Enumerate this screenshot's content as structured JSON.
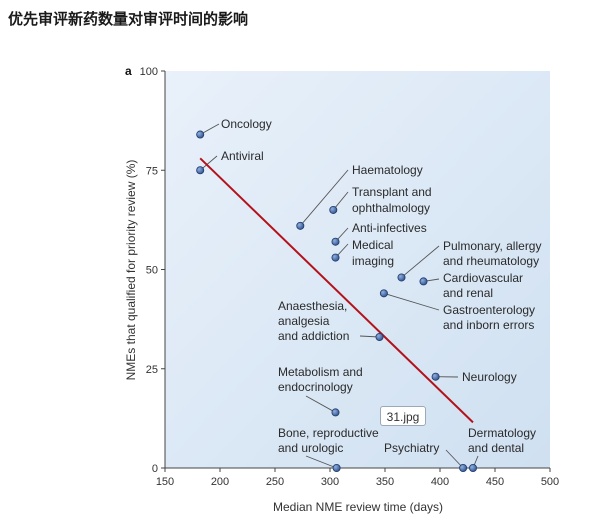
{
  "page": {
    "title": "优先审评新药数量对审评时间的影响",
    "image_tag": "31.jpg"
  },
  "chart_data": {
    "type": "scatter",
    "panel_label": "a",
    "xlabel": "Median NME review time (days)",
    "ylabel": "NMEs that qualified for priority review (%)",
    "xlim": [
      150,
      500
    ],
    "ylim": [
      0,
      100
    ],
    "xticks": [
      150,
      200,
      250,
      300,
      350,
      400,
      450,
      500
    ],
    "yticks": [
      0,
      25,
      50,
      75,
      100
    ],
    "grid": false,
    "background_color": "#ddeaf6",
    "point_color": "#3a5f9e",
    "trend_color": "#b3121b",
    "trend_line": {
      "x": [
        182,
        430
      ],
      "y": [
        78,
        11.5
      ]
    },
    "points": [
      {
        "label": "Oncology",
        "x": 182,
        "y": 84
      },
      {
        "label": "Antiviral",
        "x": 182,
        "y": 75
      },
      {
        "label": "Haematology",
        "x": 273,
        "y": 61
      },
      {
        "label": "Transplant and ophthalmology",
        "x": 303,
        "y": 65
      },
      {
        "label": "Anti-infectives",
        "x": 305,
        "y": 57
      },
      {
        "label": "Medical imaging",
        "x": 305,
        "y": 53
      },
      {
        "label": "Pulmonary, allergy and rheumatology",
        "x": 365,
        "y": 48
      },
      {
        "label": "Cardiovascular and renal",
        "x": 385,
        "y": 47
      },
      {
        "label": "Gastroenterology and inborn errors",
        "x": 349,
        "y": 44
      },
      {
        "label": "Anaesthesia, analgesia and addiction",
        "x": 345,
        "y": 33
      },
      {
        "label": "Neurology",
        "x": 396,
        "y": 23
      },
      {
        "label": "Metabolism and endocrinology",
        "x": 305,
        "y": 14
      },
      {
        "label": "Bone, reproductive and urologic",
        "x": 306,
        "y": 0
      },
      {
        "label": "Psychiatry",
        "x": 421,
        "y": 0
      },
      {
        "label": "Dermatology and dental",
        "x": 430,
        "y": 0
      }
    ],
    "annotations": [
      "Oncology",
      "Antiviral",
      "Haematology",
      "Transplant and",
      "ophthalmology",
      "Anti-infectives",
      "Medical",
      "imaging",
      "Pulmonary, allergy",
      "and rheumatology",
      "Cardiovascular",
      "and renal",
      "Gastroenterology",
      "and inborn errors",
      "Anaesthesia,",
      "analgesia",
      "and addiction",
      "Neurology",
      "Metabolism and",
      "endocrinology",
      "Bone, reproductive",
      "and urologic",
      "Psychiatry",
      "Dermatology",
      "and dental"
    ]
  }
}
